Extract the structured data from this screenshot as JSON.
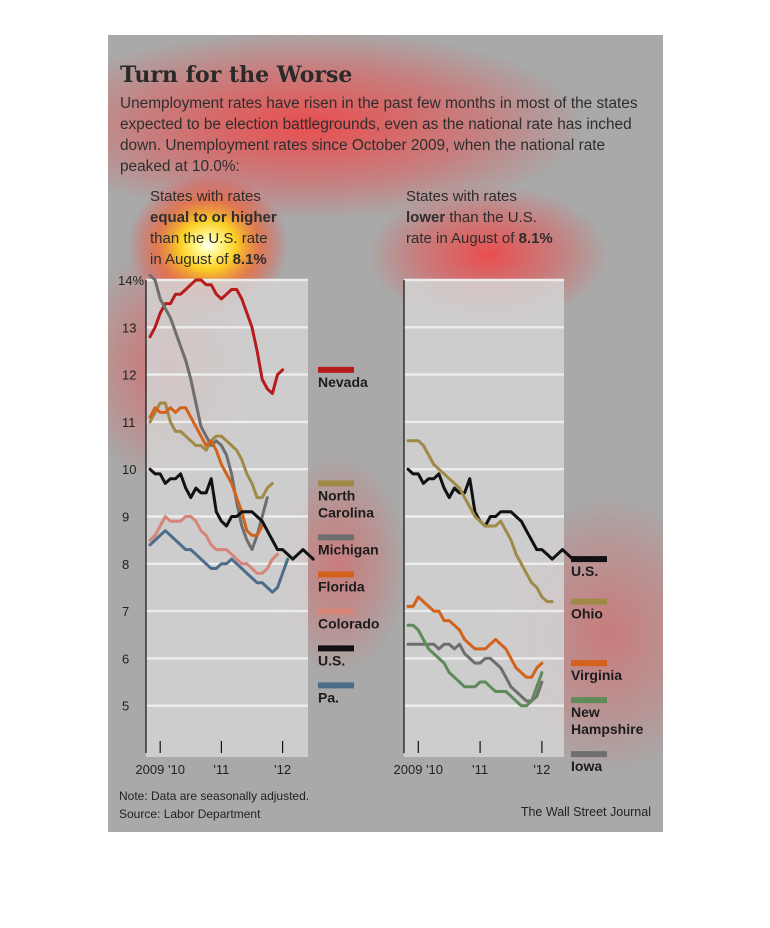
{
  "chart_data": {
    "type": "line",
    "title": "Turn for the Worse",
    "subtitle": "Unemployment rates have risen in the past few months in most of the states expected to be election battlegrounds, even as the national rate has inched down. Unemployment rates since October 2009, when the national rate peaked at 10.0%:",
    "note": "Note: Data are seasonally adjusted.",
    "source": "Source: Labor Department",
    "credit": "The Wall Street Journal",
    "ylim": [
      4,
      14
    ],
    "y_ticks": [
      {
        "value": 14,
        "label": "14%"
      },
      {
        "value": 13,
        "label": "13"
      },
      {
        "value": 12,
        "label": "12"
      },
      {
        "value": 11,
        "label": "11"
      },
      {
        "value": 10,
        "label": "10"
      },
      {
        "value": 9,
        "label": "9"
      },
      {
        "value": 8,
        "label": "8"
      },
      {
        "value": 7,
        "label": "7"
      },
      {
        "value": 6,
        "label": "6"
      },
      {
        "value": 5,
        "label": "5"
      }
    ],
    "x_ticks": [
      {
        "value": 2,
        "label": "2009 '10"
      },
      {
        "value": 14,
        "label": "'11"
      },
      {
        "value": 26,
        "label": "'12"
      }
    ],
    "grid": "horizontal",
    "colors": {
      "panel_bg": "#d4d4d4",
      "grid": "#ececec",
      "axis": "#111111",
      "nevada": "#b71c1c",
      "north_carolina": "#a08a48",
      "michigan": "#6e6e6e",
      "florida": "#d3621d",
      "us": "#111111",
      "colorado": "#d68578",
      "pennsylvania": "#4d6c8a",
      "ohio": "#a08a48",
      "virginia": "#d3621d",
      "iowa": "#6e6e6e",
      "new_hampshire": "#5f8a5a"
    },
    "panels": [
      {
        "heading": [
          "States with rates",
          "equal to or higher",
          "than the U.S. rate",
          "in August of ",
          "8.1%"
        ],
        "series": [
          {
            "name": "Nevada",
            "color_key": "nevada",
            "values": [
              12.8,
              13.0,
              13.3,
              13.5,
              13.5,
              13.7,
              13.7,
              13.8,
              13.9,
              14.0,
              14.0,
              13.9,
              13.9,
              13.7,
              13.6,
              13.7,
              13.8,
              13.8,
              13.6,
              13.3,
              13.0,
              12.5,
              11.9,
              11.7,
              11.6,
              12.0,
              12.1
            ]
          },
          {
            "name": "North Carolina",
            "color_key": "north_carolina",
            "values": [
              11.0,
              11.2,
              11.4,
              11.4,
              11.0,
              10.8,
              10.8,
              10.7,
              10.6,
              10.5,
              10.5,
              10.4,
              10.6,
              10.7,
              10.7,
              10.6,
              10.5,
              10.4,
              10.2,
              9.9,
              9.7,
              9.4,
              9.4,
              9.6,
              9.7
            ]
          },
          {
            "name": "Michigan",
            "color_key": "michigan",
            "values": [
              14.1,
              14.0,
              13.6,
              13.4,
              13.2,
              12.9,
              12.6,
              12.3,
              11.9,
              11.4,
              10.9,
              10.7,
              10.5,
              10.6,
              10.5,
              10.3,
              9.9,
              9.3,
              8.8,
              8.5,
              8.3,
              8.6,
              9.0,
              9.4
            ]
          },
          {
            "name": "Florida",
            "color_key": "florida",
            "values": [
              11.1,
              11.3,
              11.2,
              11.2,
              11.3,
              11.2,
              11.3,
              11.3,
              11.1,
              10.9,
              10.7,
              10.5,
              10.6,
              10.4,
              10.1,
              9.9,
              9.7,
              9.4,
              9.1,
              8.7,
              8.6,
              8.6,
              8.8
            ]
          },
          {
            "name": "U.S.",
            "color_key": "us",
            "values": [
              10.0,
              9.9,
              9.9,
              9.7,
              9.8,
              9.8,
              9.9,
              9.6,
              9.4,
              9.6,
              9.5,
              9.5,
              9.8,
              9.1,
              8.9,
              8.8,
              9.0,
              9.0,
              9.1,
              9.1,
              9.1,
              9.0,
              8.9,
              8.7,
              8.5,
              8.3,
              8.3,
              8.2,
              8.1,
              8.2,
              8.3,
              8.2,
              8.1
            ]
          },
          {
            "name": "Colorado",
            "color_key": "colorado",
            "values": [
              8.5,
              8.6,
              8.8,
              9.0,
              8.9,
              8.9,
              8.9,
              9.0,
              9.0,
              8.9,
              8.7,
              8.6,
              8.4,
              8.3,
              8.3,
              8.3,
              8.2,
              8.1,
              8.0,
              8.0,
              7.9,
              7.8,
              7.8,
              7.9,
              8.1,
              8.2
            ]
          },
          {
            "name": "Pa.",
            "color_key": "pennsylvania",
            "values": [
              8.4,
              8.5,
              8.6,
              8.7,
              8.6,
              8.5,
              8.4,
              8.3,
              8.3,
              8.2,
              8.1,
              8.0,
              7.9,
              7.9,
              8.0,
              8.0,
              8.1,
              8.0,
              7.9,
              7.8,
              7.7,
              7.6,
              7.6,
              7.5,
              7.4,
              7.5,
              7.8,
              8.1
            ]
          }
        ],
        "labels": [
          {
            "series": "Nevada",
            "lines": [
              "Nevada"
            ]
          },
          {
            "series": "North Carolina",
            "lines": [
              "North",
              "Carolina"
            ]
          },
          {
            "series": "Michigan",
            "lines": [
              "Michigan"
            ]
          },
          {
            "series": "Florida",
            "lines": [
              "Florida"
            ]
          },
          {
            "series": "U.S.",
            "lines": [
              "U.S."
            ]
          },
          {
            "series": "Colorado",
            "lines": [
              "Colorado"
            ]
          },
          {
            "series": "Pa.",
            "lines": [
              "Pa."
            ]
          }
        ]
      },
      {
        "heading": [
          "States with rates",
          "lower",
          " than the U.S.",
          "rate in August of ",
          "8.1%"
        ],
        "series": [
          {
            "name": "U.S.",
            "color_key": "us",
            "values": [
              10.0,
              9.9,
              9.9,
              9.7,
              9.8,
              9.8,
              9.9,
              9.6,
              9.4,
              9.6,
              9.5,
              9.5,
              9.8,
              9.1,
              8.9,
              8.8,
              9.0,
              9.0,
              9.1,
              9.1,
              9.1,
              9.0,
              8.9,
              8.7,
              8.5,
              8.3,
              8.3,
              8.2,
              8.1,
              8.2,
              8.3,
              8.2,
              8.1
            ]
          },
          {
            "name": "Ohio",
            "color_key": "ohio",
            "values": [
              10.6,
              10.6,
              10.6,
              10.5,
              10.3,
              10.1,
              10.0,
              9.9,
              9.8,
              9.7,
              9.6,
              9.4,
              9.2,
              9.0,
              8.9,
              8.8,
              8.8,
              8.8,
              8.9,
              8.7,
              8.5,
              8.2,
              8.0,
              7.8,
              7.6,
              7.5,
              7.3,
              7.2,
              7.2
            ]
          },
          {
            "name": "Virginia",
            "color_key": "virginia",
            "values": [
              7.1,
              7.1,
              7.3,
              7.2,
              7.1,
              7.0,
              7.0,
              6.8,
              6.8,
              6.7,
              6.6,
              6.4,
              6.3,
              6.2,
              6.2,
              6.2,
              6.3,
              6.4,
              6.3,
              6.2,
              6.0,
              5.8,
              5.7,
              5.6,
              5.6,
              5.8,
              5.9
            ]
          },
          {
            "name": "Iowa",
            "color_key": "iowa",
            "values": [
              6.3,
              6.3,
              6.3,
              6.3,
              6.3,
              6.3,
              6.2,
              6.3,
              6.3,
              6.2,
              6.3,
              6.1,
              6.0,
              5.9,
              5.9,
              6.0,
              6.0,
              5.9,
              5.8,
              5.6,
              5.4,
              5.3,
              5.2,
              5.1,
              5.1,
              5.2,
              5.5
            ]
          },
          {
            "name": "New Hampshire",
            "color_key": "new_hampshire",
            "values": [
              6.7,
              6.7,
              6.6,
              6.4,
              6.2,
              6.1,
              6.0,
              5.9,
              5.7,
              5.6,
              5.5,
              5.4,
              5.4,
              5.4,
              5.5,
              5.5,
              5.4,
              5.3,
              5.3,
              5.3,
              5.2,
              5.1,
              5.0,
              5.0,
              5.1,
              5.4,
              5.7
            ]
          }
        ],
        "labels": [
          {
            "series": "U.S.",
            "lines": [
              "U.S."
            ]
          },
          {
            "series": "Ohio",
            "lines": [
              "Ohio"
            ]
          },
          {
            "series": "Virginia",
            "lines": [
              "Virginia"
            ]
          },
          {
            "series": "Iowa",
            "lines": [
              "Iowa"
            ]
          },
          {
            "series": "New Hampshire",
            "lines": [
              "New",
              "Hampshire"
            ]
          }
        ]
      }
    ]
  }
}
